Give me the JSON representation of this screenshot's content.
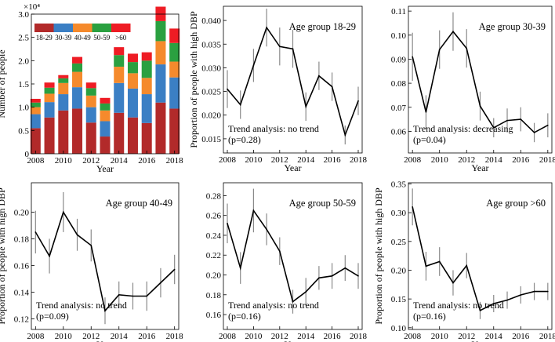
{
  "chart_data": [
    {
      "type": "bar",
      "stacked": true,
      "ylabel": "Number of people",
      "xlabel": "Year",
      "y_exponent": "×10⁴",
      "ylim": [
        0,
        3.0
      ],
      "yticks": [
        0,
        0.5,
        1.0,
        1.5,
        2.0,
        2.5,
        3.0
      ],
      "ytick_labels": [
        "0",
        "0.5",
        "1.0",
        "1.5",
        "2.0",
        "2.5",
        "3.0"
      ],
      "xticks": [
        2008,
        2010,
        2012,
        2014,
        2016,
        2018
      ],
      "categories": [
        2008,
        2009,
        2010,
        2011,
        2012,
        2013,
        2014,
        2015,
        2016,
        2017,
        2018
      ],
      "legend_position": "top-left",
      "series": [
        {
          "name": "18-29",
          "color": "#b22a2a",
          "values": [
            0.55,
            0.78,
            0.93,
            0.97,
            0.67,
            0.37,
            0.88,
            0.78,
            0.66,
            1.1,
            0.97
          ]
        },
        {
          "name": "30-39",
          "color": "#3b7fc4",
          "values": [
            0.3,
            0.33,
            0.35,
            0.46,
            0.33,
            0.33,
            0.64,
            0.62,
            0.62,
            0.82,
            0.67
          ]
        },
        {
          "name": "40-49",
          "color": "#f58a2c",
          "values": [
            0.15,
            0.18,
            0.24,
            0.33,
            0.25,
            0.23,
            0.35,
            0.33,
            0.35,
            0.5,
            0.34
          ]
        },
        {
          "name": "50-59",
          "color": "#2aa040",
          "values": [
            0.1,
            0.13,
            0.1,
            0.18,
            0.16,
            0.15,
            0.25,
            0.24,
            0.37,
            0.43,
            0.4
          ]
        },
        {
          "name": ">60",
          "color": "#ee1c24",
          "values": [
            0.08,
            0.11,
            0.07,
            0.14,
            0.12,
            0.12,
            0.17,
            0.18,
            0.18,
            0.31,
            0.31
          ]
        }
      ]
    },
    {
      "type": "line",
      "title": "Age group 18-29",
      "ylabel": "Proportion of people with high DBP",
      "xlabel": "Year",
      "annotation": [
        "Trend analysis: no trend",
        "(p=0.28)"
      ],
      "ylim": [
        0.012,
        0.043
      ],
      "yticks": [
        0.015,
        0.02,
        0.025,
        0.03,
        0.035,
        0.04
      ],
      "ytick_labels": [
        "0.015",
        "0.020",
        "0.025",
        "0.030",
        "0.035",
        "0.040"
      ],
      "xticks": [
        2008,
        2010,
        2012,
        2014,
        2016,
        2018
      ],
      "x": [
        2008,
        2009,
        2010,
        2011,
        2012,
        2013,
        2014,
        2015,
        2016,
        2017,
        2018
      ],
      "y": [
        0.0255,
        0.0222,
        0.0305,
        0.0385,
        0.0345,
        0.034,
        0.0218,
        0.0283,
        0.026,
        0.0158,
        0.023
      ],
      "err": [
        0.004,
        0.003,
        0.0035,
        0.004,
        0.004,
        0.004,
        0.003,
        0.003,
        0.003,
        0.002,
        0.003
      ]
    },
    {
      "type": "line",
      "title": "Age group 30-39",
      "ylabel": "",
      "xlabel": "Year",
      "annotation": [
        "Trend analysis: decreasing",
        "(p=0.04)"
      ],
      "ylim": [
        0.051,
        0.112
      ],
      "yticks": [
        0.06,
        0.07,
        0.08,
        0.09,
        0.1,
        0.11
      ],
      "ytick_labels": [
        "0.06",
        "0.07",
        "0.08",
        "0.09",
        "0.10",
        "0.11"
      ],
      "xticks": [
        2008,
        2010,
        2012,
        2014,
        2016,
        2018
      ],
      "x": [
        2008,
        2009,
        2010,
        2011,
        2012,
        2013,
        2014,
        2015,
        2016,
        2017,
        2018
      ],
      "y": [
        0.091,
        0.068,
        0.094,
        0.1015,
        0.0945,
        0.0705,
        0.0615,
        0.0645,
        0.065,
        0.0595,
        0.0625
      ],
      "err": [
        0.01,
        0.007,
        0.008,
        0.008,
        0.008,
        0.006,
        0.004,
        0.005,
        0.005,
        0.004,
        0.005
      ]
    },
    {
      "type": "line",
      "title": "Age group 40-49",
      "ylabel": "Proportion of people with high DBP",
      "xlabel": "Year",
      "annotation": [
        "Trend analysis: no trend",
        "(p=0.09)"
      ],
      "ylim": [
        0.112,
        0.222
      ],
      "yticks": [
        0.12,
        0.14,
        0.16,
        0.18,
        0.2
      ],
      "ytick_labels": [
        "0.12",
        "0.14",
        "0.16",
        "0.18",
        "0.20"
      ],
      "xticks": [
        2008,
        2010,
        2012,
        2014,
        2016,
        2018
      ],
      "x": [
        2008,
        2009,
        2010,
        2011,
        2012,
        2013,
        2014,
        2015,
        2016,
        2017,
        2018
      ],
      "y": [
        0.185,
        0.167,
        0.2,
        0.183,
        0.175,
        0.126,
        0.138,
        0.137,
        0.137,
        0.147,
        0.157
      ],
      "err": [
        0.016,
        0.013,
        0.015,
        0.012,
        0.012,
        0.01,
        0.01,
        0.01,
        0.011,
        0.011,
        0.011
      ]
    },
    {
      "type": "line",
      "title": "Age group 50-59",
      "ylabel": "",
      "xlabel": "Year",
      "annotation": [
        "Trend analysis: no trend",
        "(p=0.16)"
      ],
      "ylim": [
        0.145,
        0.293
      ],
      "yticks": [
        0.16,
        0.18,
        0.2,
        0.22,
        0.24,
        0.26,
        0.28
      ],
      "ytick_labels": [
        "0.16",
        "0.18",
        "0.20",
        "0.22",
        "0.24",
        "0.26",
        "0.28"
      ],
      "xticks": [
        2008,
        2010,
        2012,
        2014,
        2016,
        2018
      ],
      "x": [
        2008,
        2009,
        2010,
        2011,
        2012,
        2013,
        2014,
        2015,
        2016,
        2017,
        2018
      ],
      "y": [
        0.252,
        0.207,
        0.265,
        0.246,
        0.224,
        0.173,
        0.183,
        0.197,
        0.199,
        0.207,
        0.199
      ],
      "err": [
        0.02,
        0.016,
        0.022,
        0.016,
        0.014,
        0.012,
        0.014,
        0.012,
        0.013,
        0.013,
        0.013
      ]
    },
    {
      "type": "line",
      "title": "Age group >60",
      "ylabel": "Proportion of people with high DBP",
      "xlabel": "Year",
      "annotation": [
        "Trend analysis: no trend",
        "(p=0.16)"
      ],
      "ylim": [
        0.097,
        0.352
      ],
      "yticks": [
        0.1,
        0.15,
        0.2,
        0.25,
        0.3,
        0.35
      ],
      "ytick_labels": [
        "0.10",
        "0.15",
        "0.20",
        "0.25",
        "0.30",
        "0.35"
      ],
      "xticks": [
        2008,
        2010,
        2012,
        2014,
        2016,
        2018
      ],
      "x": [
        2008,
        2009,
        2010,
        2011,
        2012,
        2013,
        2014,
        2015,
        2016,
        2017,
        2018
      ],
      "y": [
        0.31,
        0.207,
        0.215,
        0.178,
        0.208,
        0.13,
        0.142,
        0.148,
        0.157,
        0.163,
        0.163
      ],
      "err": [
        0.032,
        0.025,
        0.025,
        0.022,
        0.022,
        0.015,
        0.015,
        0.015,
        0.015,
        0.015,
        0.015
      ]
    }
  ]
}
